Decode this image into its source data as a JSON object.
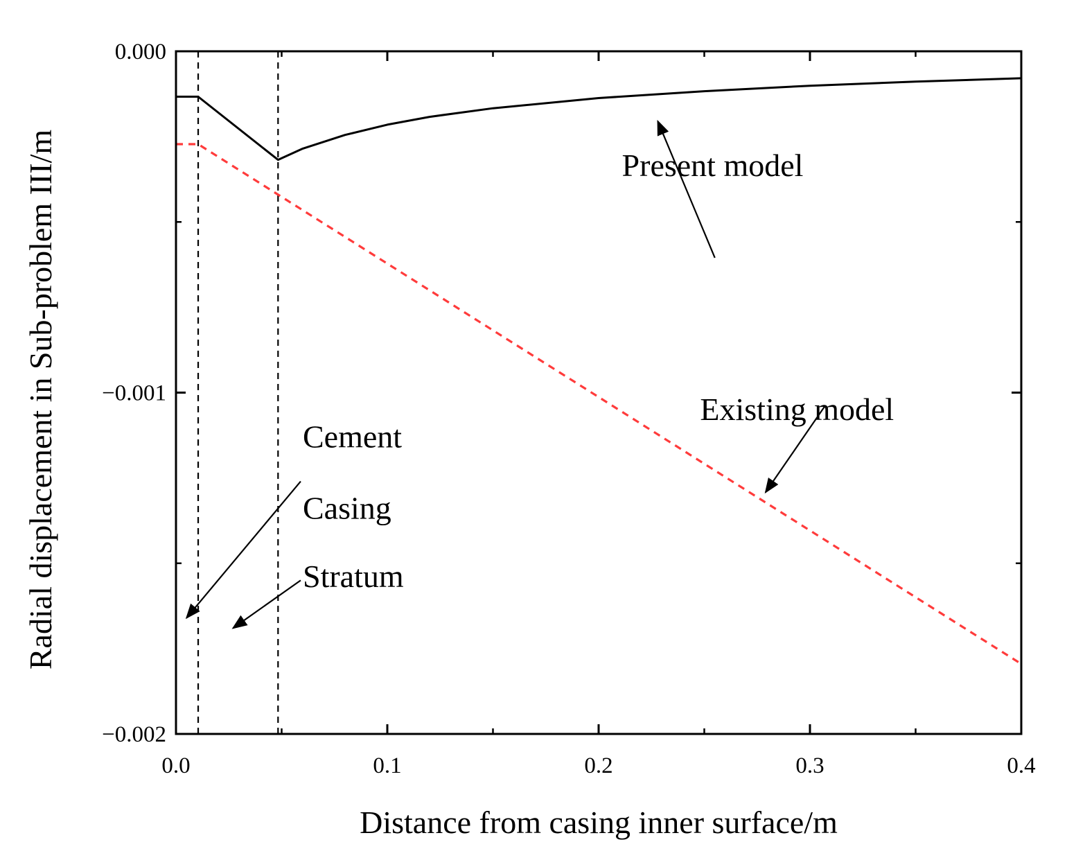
{
  "chart_data": {
    "type": "line",
    "title": "",
    "xlabel": "Distance from casing inner surface/m",
    "ylabel": "Radial displacement in Sub-problem III/m",
    "xlim": [
      0.0,
      0.4
    ],
    "ylim": [
      -0.002,
      0.0
    ],
    "x_ticks": [
      {
        "value": 0.0,
        "label": "0.0"
      },
      {
        "value": 0.1,
        "label": "0.1"
      },
      {
        "value": 0.2,
        "label": "0.2"
      },
      {
        "value": 0.3,
        "label": "0.3"
      },
      {
        "value": 0.4,
        "label": "0.4"
      }
    ],
    "x_minor_ticks": [
      0.05,
      0.15,
      0.25,
      0.35
    ],
    "y_ticks": [
      {
        "value": 0.0,
        "label": "0.000"
      },
      {
        "value": -0.001,
        "label": "−0.001"
      },
      {
        "value": -0.002,
        "label": "−0.002"
      }
    ],
    "y_minor_ticks": [
      -0.0005,
      -0.0015
    ],
    "grid": false,
    "boundaries": [
      0.0105,
      0.0483
    ],
    "series": [
      {
        "name": "Present model",
        "color": "#000000",
        "dash": "solid",
        "x": [
          0.0,
          0.0105,
          0.0483,
          0.06,
          0.08,
          0.1,
          0.12,
          0.15,
          0.2,
          0.25,
          0.3,
          0.35,
          0.4
        ],
        "y": [
          -0.000133,
          -0.000133,
          -0.000318,
          -0.000285,
          -0.000245,
          -0.000215,
          -0.000192,
          -0.000167,
          -0.000137,
          -0.000117,
          -0.000101,
          -8.9e-05,
          -7.9e-05
        ]
      },
      {
        "name": "Existing model",
        "color": "#ff3b3b",
        "dash": "dashed",
        "x": [
          0.0,
          0.0105,
          0.4
        ],
        "y": [
          -0.000272,
          -0.000272,
          -0.001795
        ]
      }
    ],
    "annotations": [
      {
        "text": "Present model",
        "x": 0.211,
        "y": -0.000365,
        "arrow_from": [
          0.255,
          -0.000605
        ],
        "arrow_to": [
          0.228,
          -0.000205
        ]
      },
      {
        "text": "Existing model",
        "x": 0.248,
        "y": -0.00108,
        "arrow_from": [
          0.307,
          -0.00104
        ],
        "arrow_to": [
          0.279,
          -0.001292
        ]
      },
      {
        "text": "Casing",
        "x": 0.06,
        "y": -0.00137,
        "arrow_from": [
          0.059,
          -0.00126
        ],
        "arrow_to": [
          0.005,
          -0.00166
        ]
      },
      {
        "text": "Cement",
        "x": 0.06,
        "y": -0.00116,
        "arrow_from": [
          0.059,
          -0.00155
        ],
        "arrow_to": [
          0.027,
          -0.00169
        ]
      },
      {
        "text": "Stratum",
        "x": 0.06,
        "y": -0.00157,
        "arrow_from": null,
        "arrow_to": null
      }
    ]
  }
}
